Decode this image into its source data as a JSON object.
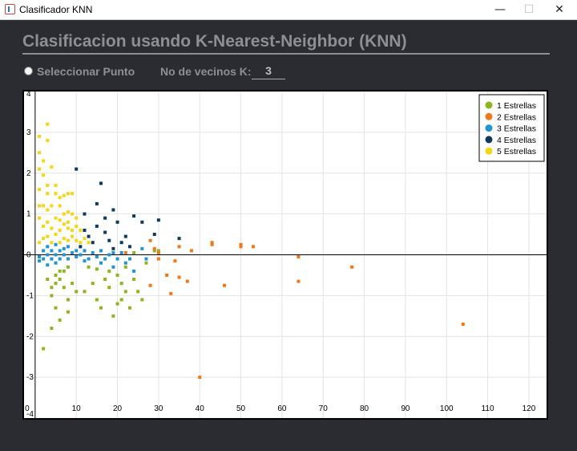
{
  "window": {
    "title": "Clasificador KNN",
    "minimize": "—",
    "maximize": "☐",
    "close": "✕"
  },
  "header": {
    "title": "Clasificacion usando K-Nearest-Neighbor (KNN)",
    "radio_label": "Seleccionar Punto",
    "k_label": "No de vecinos K:",
    "k_value": "3"
  },
  "chart_data": {
    "type": "scatter",
    "xlim": [
      -2.7,
      124.3
    ],
    "ylim": [
      -4,
      4
    ],
    "x_ticks": [
      0,
      10,
      20,
      30,
      40,
      50,
      60,
      70,
      80,
      90,
      100,
      110,
      120
    ],
    "y_ticks": [
      4,
      3,
      2,
      1,
      0,
      -1,
      -2,
      -3,
      -4
    ],
    "grid": true,
    "legend_position": "top-right",
    "series": [
      {
        "name": "1 Estrellas",
        "color": "#8db51f",
        "points": [
          [
            3,
            -0.6
          ],
          [
            4,
            -0.8
          ],
          [
            4,
            -1.0
          ],
          [
            5,
            -0.5
          ],
          [
            5,
            -0.7
          ],
          [
            6,
            -0.4
          ],
          [
            6,
            -0.6
          ],
          [
            7,
            -0.8
          ],
          [
            7,
            -0.4
          ],
          [
            8,
            -1.1
          ],
          [
            8,
            -0.3
          ],
          [
            9,
            -0.7
          ],
          [
            10,
            -0.9
          ],
          [
            5,
            -1.3
          ],
          [
            6,
            -1.6
          ],
          [
            8,
            -1.4
          ],
          [
            12,
            -0.9
          ],
          [
            13,
            -0.3
          ],
          [
            14,
            -0.7
          ],
          [
            15,
            -0.35
          ],
          [
            15,
            -1.1
          ],
          [
            16,
            -1.3
          ],
          [
            17,
            -0.6
          ],
          [
            18,
            -0.4
          ],
          [
            18,
            -0.8
          ],
          [
            19,
            -1.5
          ],
          [
            20,
            -0.5
          ],
          [
            20,
            -1.2
          ],
          [
            21,
            -0.7
          ],
          [
            21,
            -1.1
          ],
          [
            22,
            -0.3
          ],
          [
            22,
            -0.9
          ],
          [
            23,
            -1.3
          ],
          [
            24,
            -0.6
          ],
          [
            25,
            -0.9
          ],
          [
            26,
            -1.1
          ],
          [
            27,
            -0.2
          ],
          [
            29,
            0.1
          ],
          [
            30,
            0.1
          ],
          [
            4,
            -1.8
          ],
          [
            2,
            -2.3
          ],
          [
            24,
            0.05
          ]
        ]
      },
      {
        "name": "2 Estrellas",
        "color": "#f07818",
        "points": [
          [
            22,
            0.05
          ],
          [
            28,
            0.35
          ],
          [
            28,
            -0.75
          ],
          [
            29,
            0.15
          ],
          [
            30,
            0.05
          ],
          [
            30,
            -0.1
          ],
          [
            32,
            -0.5
          ],
          [
            33,
            -0.95
          ],
          [
            34,
            -0.15
          ],
          [
            35,
            0.2
          ],
          [
            35,
            -0.55
          ],
          [
            37,
            -0.65
          ],
          [
            38,
            0.1
          ],
          [
            43,
            0.3
          ],
          [
            43,
            0.25
          ],
          [
            46,
            -0.75
          ],
          [
            50,
            0.2
          ],
          [
            50,
            0.25
          ],
          [
            53,
            0.2
          ],
          [
            64,
            -0.05
          ],
          [
            64,
            -0.65
          ],
          [
            77,
            -0.3
          ],
          [
            104,
            -1.7
          ],
          [
            40,
            -3.0
          ]
        ]
      },
      {
        "name": "3 Estrellas",
        "color": "#1f95d3",
        "points": [
          [
            1,
            -0.05
          ],
          [
            2,
            0.1
          ],
          [
            2,
            -0.1
          ],
          [
            3,
            0.0
          ],
          [
            3,
            0.2
          ],
          [
            4,
            -0.1
          ],
          [
            4,
            0.1
          ],
          [
            5,
            0.0
          ],
          [
            5,
            -0.2
          ],
          [
            6,
            0.1
          ],
          [
            6,
            -0.1
          ],
          [
            7,
            0.0
          ],
          [
            7,
            0.15
          ],
          [
            8,
            -0.1
          ],
          [
            9,
            0.05
          ],
          [
            10,
            -0.05
          ],
          [
            10,
            0.1
          ],
          [
            11,
            0.0
          ],
          [
            12,
            0.1
          ],
          [
            13,
            -0.1
          ],
          [
            14,
            0.05
          ],
          [
            15,
            -0.05
          ],
          [
            16,
            0.1
          ],
          [
            17,
            -0.1
          ],
          [
            18,
            0.0
          ],
          [
            19,
            0.05
          ],
          [
            20,
            -0.1
          ],
          [
            21,
            0.05
          ],
          [
            22,
            -0.2
          ],
          [
            24,
            -0.4
          ],
          [
            27,
            -0.1
          ],
          [
            26,
            0.15
          ],
          [
            1,
            -0.15
          ],
          [
            3,
            -0.25
          ],
          [
            5,
            0.25
          ],
          [
            8,
            0.2
          ],
          [
            12,
            -0.15
          ],
          [
            16,
            -0.2
          ],
          [
            19,
            -0.3
          ],
          [
            23,
            -0.1
          ]
        ]
      },
      {
        "name": "4 Estrellas",
        "color": "#0d3a5c",
        "points": [
          [
            10,
            2.1
          ],
          [
            16,
            1.75
          ],
          [
            15,
            1.25
          ],
          [
            12,
            1.0
          ],
          [
            12,
            0.6
          ],
          [
            13,
            0.45
          ],
          [
            15,
            0.7
          ],
          [
            17,
            0.9
          ],
          [
            19,
            1.1
          ],
          [
            20,
            0.8
          ],
          [
            18,
            0.35
          ],
          [
            21,
            0.3
          ],
          [
            22,
            0.45
          ],
          [
            24,
            0.95
          ],
          [
            26,
            0.8
          ],
          [
            30,
            0.85
          ],
          [
            29,
            0.5
          ],
          [
            35,
            0.4
          ],
          [
            11,
            0.2
          ],
          [
            14,
            0.3
          ],
          [
            17,
            0.55
          ],
          [
            23,
            0.2
          ],
          [
            19,
            0.15
          ]
        ]
      },
      {
        "name": "5 Estrellas",
        "color": "#f5d615",
        "points": [
          [
            3,
            3.2
          ],
          [
            1,
            2.9
          ],
          [
            3,
            2.8
          ],
          [
            1,
            2.5
          ],
          [
            2,
            2.3
          ],
          [
            4,
            2.15
          ],
          [
            1,
            2.1
          ],
          [
            2,
            1.95
          ],
          [
            3,
            1.7
          ],
          [
            5,
            1.5
          ],
          [
            1,
            1.6
          ],
          [
            3,
            1.5
          ],
          [
            6,
            1.4
          ],
          [
            7,
            1.45
          ],
          [
            8,
            1.5
          ],
          [
            1,
            1.2
          ],
          [
            2,
            1.2
          ],
          [
            3,
            1.1
          ],
          [
            4,
            1.2
          ],
          [
            6,
            1.2
          ],
          [
            7,
            1.0
          ],
          [
            8,
            1.05
          ],
          [
            9,
            1.0
          ],
          [
            1,
            0.9
          ],
          [
            3,
            0.8
          ],
          [
            5,
            0.9
          ],
          [
            6,
            0.85
          ],
          [
            7,
            0.75
          ],
          [
            8,
            0.8
          ],
          [
            2,
            0.7
          ],
          [
            4,
            0.65
          ],
          [
            6,
            0.6
          ],
          [
            8,
            0.65
          ],
          [
            9,
            0.6
          ],
          [
            10,
            0.7
          ],
          [
            11,
            0.6
          ],
          [
            2,
            0.4
          ],
          [
            3,
            0.45
          ],
          [
            5,
            0.5
          ],
          [
            7,
            0.4
          ],
          [
            9,
            0.45
          ],
          [
            10,
            0.35
          ],
          [
            1,
            0.3
          ],
          [
            4,
            0.3
          ],
          [
            6,
            0.3
          ],
          [
            8,
            0.35
          ],
          [
            11,
            0.3
          ],
          [
            12,
            0.4
          ],
          [
            13,
            0.3
          ],
          [
            10,
            0.9
          ],
          [
            9,
            1.5
          ],
          [
            5,
            1.7
          ]
        ]
      }
    ]
  }
}
